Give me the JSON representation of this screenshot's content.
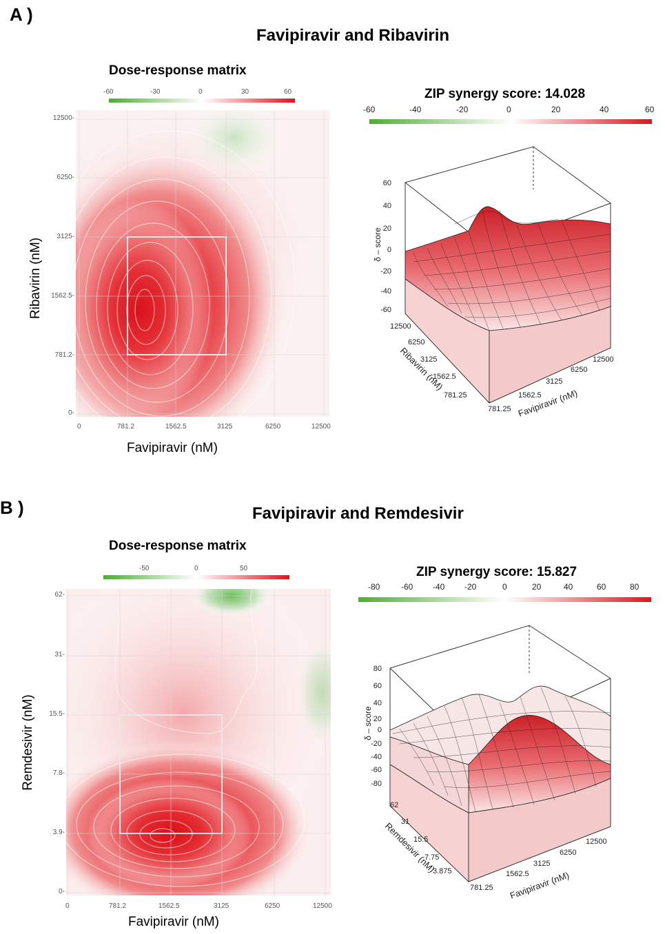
{
  "panels": [
    {
      "label": "A )",
      "title": "Favipiravir and Ribavirin",
      "chart_data": [
        {
          "type": "heatmap",
          "title": "Dose-response matrix",
          "xlabel": "Favipiravir (nM)",
          "ylabel": "Ribavirin (nM)",
          "x_ticks": [
            "0",
            "781.2",
            "1562.5",
            "3125",
            "6250",
            "12500"
          ],
          "y_ticks": [
            "0-",
            "781.2-",
            "1562.5-",
            "3125-",
            "6250-",
            "12500-"
          ],
          "colorbar": {
            "ticks": [
              "-60",
              "-30",
              "0",
              "30",
              "60"
            ],
            "low_color": "#4caf30",
            "mid_color": "#ffffff",
            "high_color": "#e0141e"
          },
          "highlight_region": {
            "x": [
              "781.2",
              "3125"
            ],
            "y": [
              "781.2",
              "3125"
            ]
          },
          "peak_region": {
            "x": "1103",
            "y": "1150"
          },
          "approx_synergy_peak": 60
        },
        {
          "type": "surface",
          "title": "ZIP synergy score: 14.028",
          "zlabel": "δ – score",
          "xlabel": "Favipiravir (nM)",
          "ylabel": "Ribavirin (nM)",
          "x_ticks": [
            "781.25",
            "1562.5",
            "3125",
            "6250",
            "12500"
          ],
          "y_ticks": [
            "781.25",
            "1562.5",
            "3125",
            "6250",
            "12500"
          ],
          "z_ticks": [
            "60",
            "40",
            "20",
            "0",
            "-20",
            "-40",
            "-60"
          ],
          "colorbar": {
            "ticks": [
              "-60",
              "-40",
              "-20",
              "0",
              "20",
              "40",
              "60"
            ]
          },
          "zlim": [
            -60,
            60
          ]
        }
      ]
    },
    {
      "label": "B )",
      "title": "Favipiravir and Remdesivir",
      "chart_data": [
        {
          "type": "heatmap",
          "title": "Dose-response matrix",
          "xlabel": "Favipiravir (nM)",
          "ylabel": "Remdesivir (nM)",
          "x_ticks": [
            "0",
            "781.2",
            "1562.5",
            "3125",
            "6250",
            "12500"
          ],
          "y_ticks": [
            "0-",
            "3.9-",
            "7.8-",
            "15.5-",
            "31-",
            "62-"
          ],
          "colorbar": {
            "ticks": [
              "-50",
              "0",
              "50"
            ],
            "low_color": "#4caf30",
            "mid_color": "#ffffff",
            "high_color": "#e0141e"
          },
          "highlight_region": {
            "x": [
              "781.2",
              "3125"
            ],
            "y": [
              "3.9",
              "15.5"
            ]
          },
          "approx_synergy_peak": 50
        },
        {
          "type": "surface",
          "title": "ZIP synergy score: 15.827",
          "zlabel": "δ – score",
          "xlabel": "Favipiravir (nM)",
          "ylabel": "Remdesivir (nM)",
          "x_ticks": [
            "781.25",
            "1562.5",
            "3125",
            "6250",
            "12500"
          ],
          "y_ticks": [
            "3.875",
            "7.75",
            "15.5",
            "31",
            "62"
          ],
          "z_ticks": [
            "80",
            "60",
            "40",
            "20",
            "0",
            "-20",
            "-40",
            "-60",
            "-80"
          ],
          "colorbar": {
            "ticks": [
              "-80",
              "-60",
              "-40",
              "-20",
              "0",
              "20",
              "40",
              "60",
              "80"
            ]
          },
          "zlim": [
            -80,
            80
          ]
        }
      ]
    }
  ]
}
